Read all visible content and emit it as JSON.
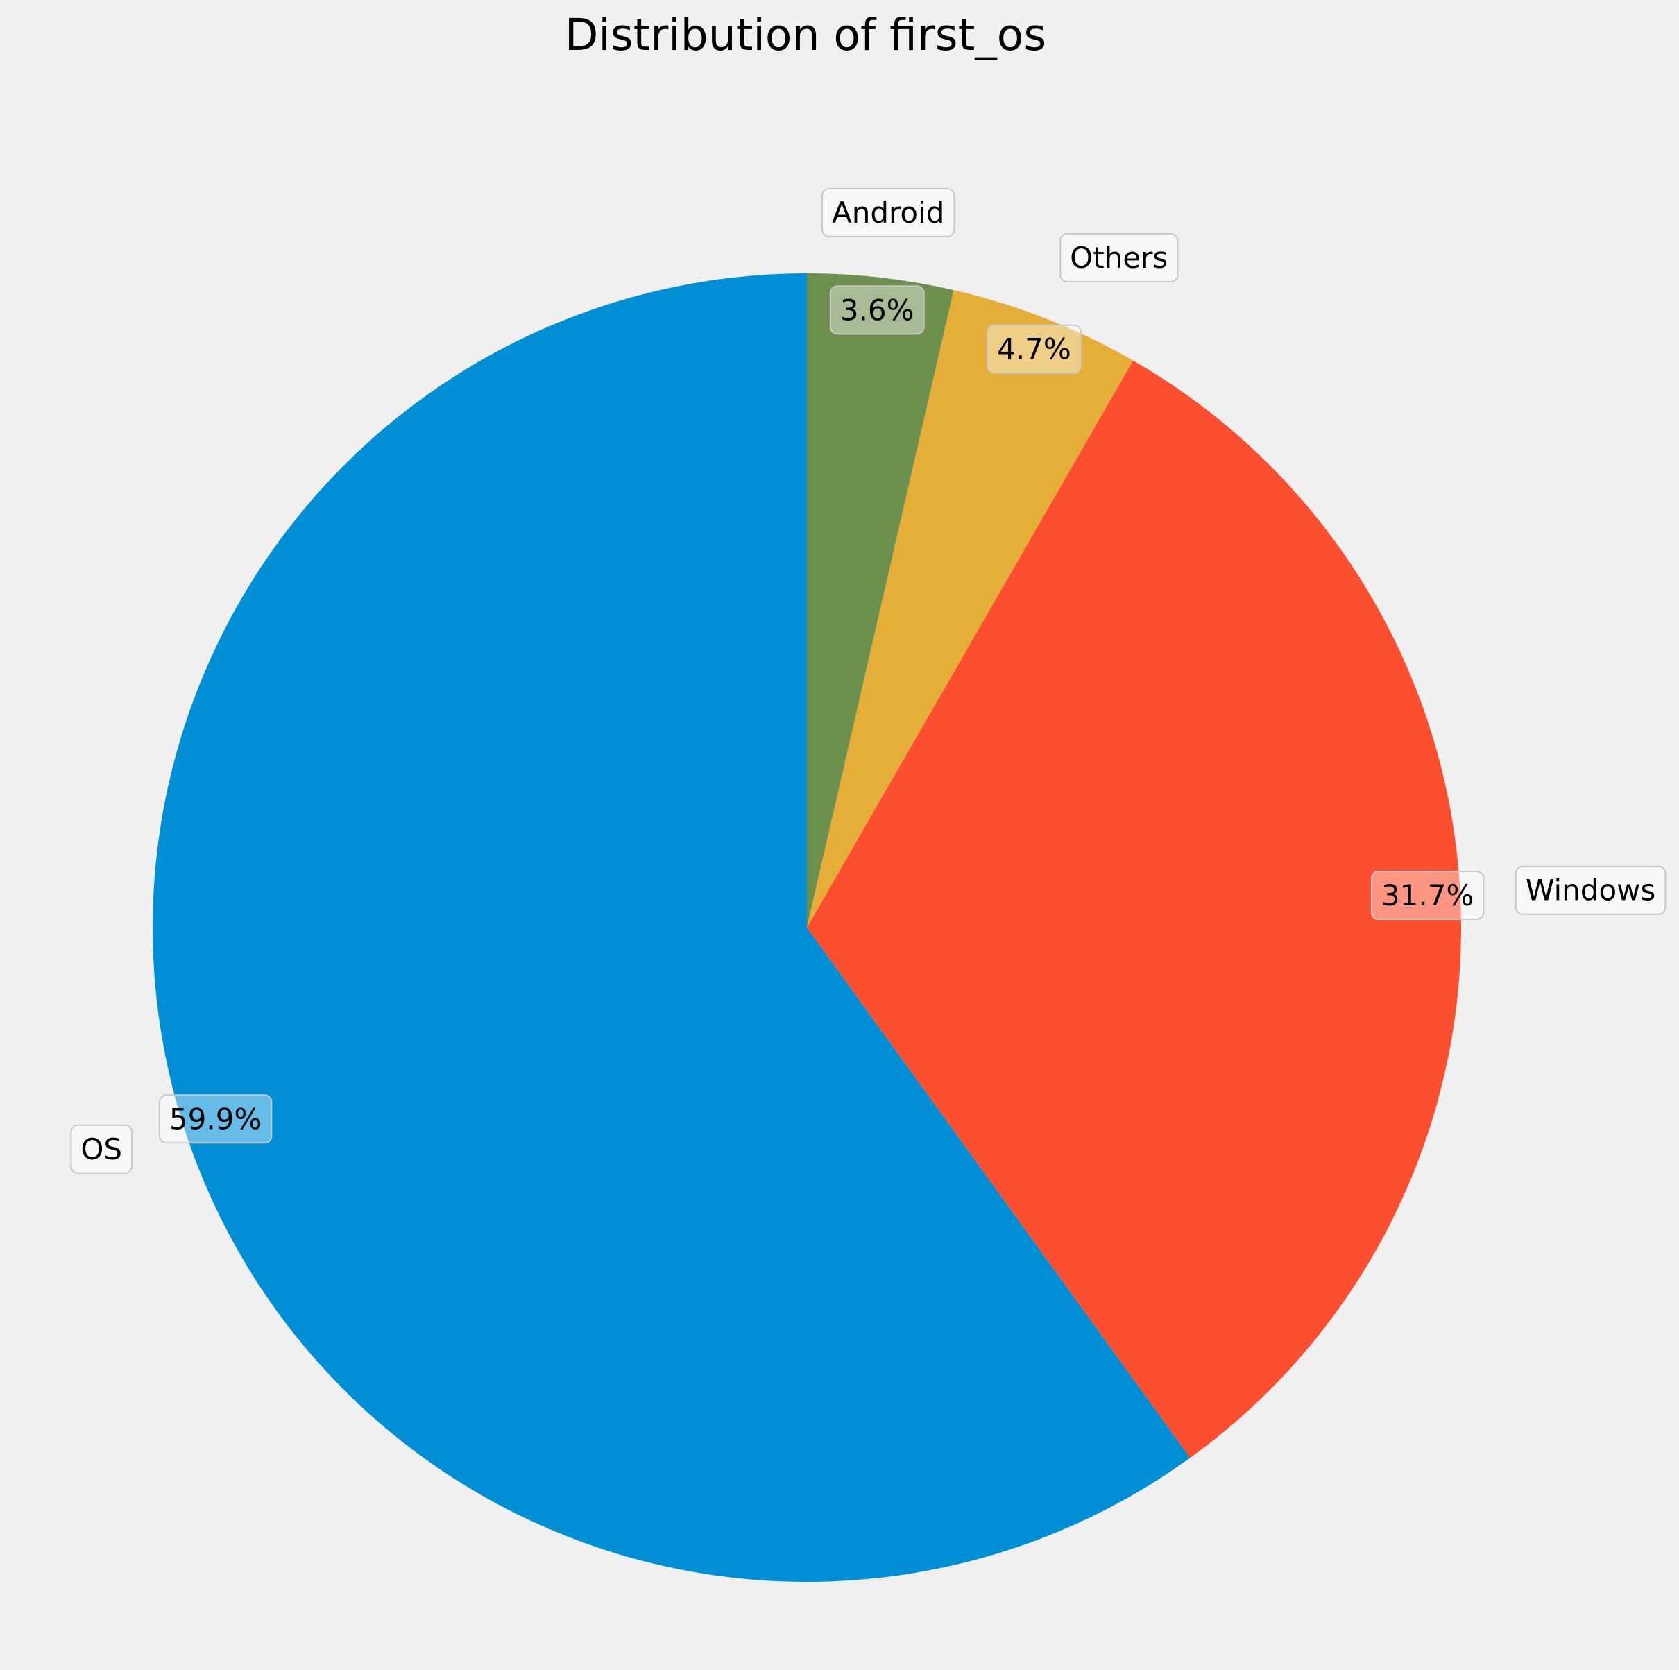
{
  "chart_data": {
    "type": "pie",
    "title": "Distribution of first_os",
    "slices": [
      {
        "label": "Android",
        "pct_label": "3.6%",
        "value": 3.6,
        "color": "#6d904f"
      },
      {
        "label": "Others",
        "pct_label": "4.7%",
        "value": 4.7,
        "color": "#e5ae38"
      },
      {
        "label": "Windows",
        "pct_label": "31.7%",
        "value": 31.7,
        "color": "#fc4f30"
      },
      {
        "label": "OS",
        "pct_label": "59.9%",
        "value": 59.9,
        "color": "#008fd5"
      }
    ],
    "start_angle": "top",
    "direction": "clockwise",
    "background": "#f0f0f0"
  }
}
